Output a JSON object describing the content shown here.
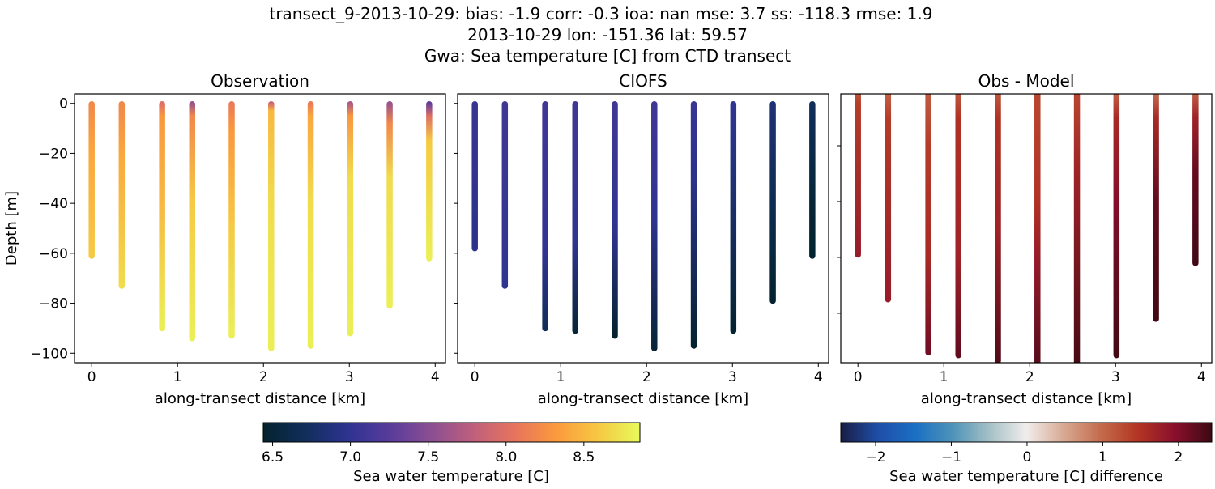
{
  "title_lines": [
    "transect_9-2013-10-29: bias: -1.9  corr: -0.3  ioa: nan  mse: 3.7  ss: -118.3  rmse: 1.9",
    "2013-10-29 lon: -151.36 lat: 59.57",
    "Gwa: Sea temperature [C] from CTD transect"
  ],
  "chart_data": [
    {
      "type": "scatter",
      "title": "Observation",
      "xlabel": "along-transect distance [km]",
      "ylabel": "Depth [m]",
      "xlim": [
        -0.2,
        4.12
      ],
      "ylim": [
        -103.8,
        3.8
      ],
      "xticks": [
        0,
        1,
        2,
        3,
        4
      ],
      "yticks": [
        0,
        -20,
        -40,
        -60,
        -80,
        -100
      ],
      "show_ytick_labels": true,
      "colormap": "thermal",
      "casts": [
        {
          "x": 0.0,
          "max_depth": 61,
          "profile": [
            [
              0,
              8.2
            ],
            [
              20,
              8.4
            ],
            [
              60,
              8.6
            ]
          ]
        },
        {
          "x": 0.35,
          "max_depth": 73,
          "profile": [
            [
              0,
              8.2
            ],
            [
              20,
              8.4
            ],
            [
              73,
              8.7
            ]
          ]
        },
        {
          "x": 0.82,
          "max_depth": 90,
          "profile": [
            [
              0,
              8.0
            ],
            [
              5,
              8.3
            ],
            [
              40,
              8.5
            ],
            [
              90,
              8.8
            ]
          ]
        },
        {
          "x": 1.17,
          "max_depth": 94,
          "profile": [
            [
              0,
              7.6
            ],
            [
              5,
              8.2
            ],
            [
              40,
              8.6
            ],
            [
              94,
              8.8
            ]
          ]
        },
        {
          "x": 1.63,
          "max_depth": 93,
          "profile": [
            [
              0,
              8.1
            ],
            [
              10,
              8.3
            ],
            [
              50,
              8.6
            ],
            [
              93,
              8.8
            ]
          ]
        },
        {
          "x": 2.09,
          "max_depth": 98,
          "profile": [
            [
              0,
              7.9
            ],
            [
              3,
              8.5
            ],
            [
              40,
              8.7
            ],
            [
              98,
              8.8
            ]
          ]
        },
        {
          "x": 2.55,
          "max_depth": 97,
          "profile": [
            [
              0,
              8.1
            ],
            [
              5,
              8.4
            ],
            [
              40,
              8.7
            ],
            [
              97,
              8.8
            ]
          ]
        },
        {
          "x": 3.01,
          "max_depth": 92,
          "profile": [
            [
              0,
              7.7
            ],
            [
              5,
              8.3
            ],
            [
              30,
              8.7
            ],
            [
              92,
              8.8
            ]
          ]
        },
        {
          "x": 3.47,
          "max_depth": 81,
          "profile": [
            [
              0,
              7.6
            ],
            [
              8,
              8.2
            ],
            [
              30,
              8.7
            ],
            [
              81,
              8.8
            ]
          ]
        },
        {
          "x": 3.93,
          "max_depth": 62,
          "profile": [
            [
              0,
              7.3
            ],
            [
              5,
              8.0
            ],
            [
              15,
              8.6
            ],
            [
              62,
              8.8
            ]
          ]
        }
      ]
    },
    {
      "type": "scatter",
      "title": "CIOFS",
      "xlabel": "along-transect distance [km]",
      "xlim": [
        -0.2,
        4.12
      ],
      "ylim": [
        -103.8,
        3.8
      ],
      "xticks": [
        0,
        1,
        2,
        3,
        4
      ],
      "yticks": [
        0,
        -20,
        -40,
        -60,
        -80,
        -100
      ],
      "show_ytick_labels": false,
      "colormap": "thermal",
      "casts": [
        {
          "x": 0.0,
          "max_depth": 58,
          "profile": [
            [
              0,
              7.05
            ],
            [
              58,
              6.95
            ]
          ]
        },
        {
          "x": 0.35,
          "max_depth": 73,
          "profile": [
            [
              0,
              7.1
            ],
            [
              73,
              7.0
            ]
          ]
        },
        {
          "x": 0.82,
          "max_depth": 90,
          "profile": [
            [
              0,
              7.1
            ],
            [
              60,
              7.0
            ],
            [
              90,
              6.7
            ]
          ]
        },
        {
          "x": 1.17,
          "max_depth": 91,
          "profile": [
            [
              0,
              7.1
            ],
            [
              55,
              7.0
            ],
            [
              91,
              6.5
            ]
          ]
        },
        {
          "x": 1.63,
          "max_depth": 93,
          "profile": [
            [
              0,
              7.1
            ],
            [
              50,
              7.0
            ],
            [
              93,
              6.45
            ]
          ]
        },
        {
          "x": 2.09,
          "max_depth": 98,
          "profile": [
            [
              0,
              7.1
            ],
            [
              45,
              7.0
            ],
            [
              98,
              6.5
            ]
          ]
        },
        {
          "x": 2.55,
          "max_depth": 97,
          "profile": [
            [
              0,
              7.05
            ],
            [
              30,
              6.95
            ],
            [
              97,
              6.45
            ]
          ]
        },
        {
          "x": 3.01,
          "max_depth": 91,
          "profile": [
            [
              0,
              7.0
            ],
            [
              30,
              6.85
            ],
            [
              91,
              6.45
            ]
          ]
        },
        {
          "x": 3.47,
          "max_depth": 79,
          "profile": [
            [
              0,
              6.85
            ],
            [
              40,
              6.65
            ],
            [
              79,
              6.45
            ]
          ]
        },
        {
          "x": 3.93,
          "max_depth": 61,
          "profile": [
            [
              0,
              6.7
            ],
            [
              40,
              6.5
            ],
            [
              61,
              6.45
            ]
          ]
        }
      ]
    },
    {
      "type": "scatter",
      "title": "Obs - Model",
      "xlabel": "along-transect distance [km]",
      "xlim": [
        -0.2,
        4.12
      ],
      "ylim": [
        -97.7,
        -1.45
      ],
      "xticks": [
        0,
        1,
        2,
        3,
        4
      ],
      "yticks": [
        -20,
        -40,
        -60,
        -80
      ],
      "show_ytick_labels": false,
      "colormap": "balance",
      "casts": [
        {
          "x": 0.0,
          "max_depth": 59,
          "profile": [
            [
              0,
              1.1
            ],
            [
              5,
              1.4
            ],
            [
              59,
              1.8
            ]
          ]
        },
        {
          "x": 0.35,
          "max_depth": 75,
          "profile": [
            [
              0,
              1.0
            ],
            [
              10,
              1.4
            ],
            [
              75,
              1.8
            ]
          ]
        },
        {
          "x": 0.82,
          "max_depth": 94,
          "profile": [
            [
              0,
              1.1
            ],
            [
              20,
              1.4
            ],
            [
              60,
              1.6
            ],
            [
              94,
              2.1
            ]
          ]
        },
        {
          "x": 1.17,
          "max_depth": 95,
          "profile": [
            [
              0,
              1.1
            ],
            [
              10,
              1.5
            ],
            [
              60,
              1.7
            ],
            [
              95,
              2.2
            ]
          ]
        },
        {
          "x": 1.63,
          "max_depth": 97,
          "profile": [
            [
              0,
              1.1
            ],
            [
              10,
              1.5
            ],
            [
              50,
              1.7
            ],
            [
              97,
              2.3
            ]
          ]
        },
        {
          "x": 2.09,
          "max_depth": 102,
          "profile": [
            [
              0,
              1.3
            ],
            [
              40,
              1.5
            ],
            [
              60,
              1.8
            ],
            [
              102,
              2.3
            ]
          ]
        },
        {
          "x": 2.55,
          "max_depth": 102,
          "profile": [
            [
              0,
              1.3
            ],
            [
              30,
              1.7
            ],
            [
              102,
              2.4
            ]
          ]
        },
        {
          "x": 3.01,
          "max_depth": 95,
          "profile": [
            [
              0,
              1.0
            ],
            [
              10,
              1.6
            ],
            [
              40,
              2.0
            ],
            [
              95,
              2.4
            ]
          ]
        },
        {
          "x": 3.47,
          "max_depth": 82,
          "profile": [
            [
              0,
              0.9
            ],
            [
              10,
              1.6
            ],
            [
              40,
              2.2
            ],
            [
              82,
              2.4
            ]
          ]
        },
        {
          "x": 3.93,
          "max_depth": 62,
          "profile": [
            [
              0,
              1.0
            ],
            [
              10,
              1.7
            ],
            [
              30,
              2.2
            ],
            [
              62,
              2.4
            ]
          ]
        }
      ]
    }
  ],
  "colorbars": [
    {
      "label": "Sea water temperature [C]",
      "colormap": "thermal",
      "range": [
        6.44,
        8.86
      ],
      "ticks": [
        "6.5",
        "7.0",
        "7.5",
        "8.0",
        "8.5"
      ]
    },
    {
      "label": "Sea water temperature [C] difference",
      "colormap": "balance",
      "range": [
        -2.46,
        2.44
      ],
      "ticks": [
        "−2",
        "−1",
        "0",
        "1",
        "2"
      ]
    }
  ],
  "colormaps": {
    "thermal": [
      "#04232e",
      "#102e5a",
      "#2d3390",
      "#573b9b",
      "#8a4e92",
      "#be5f7c",
      "#e6735e",
      "#fb9a3c",
      "#f6c843",
      "#e8fa5b"
    ],
    "balance": [
      "#181c43",
      "#1f4ea8",
      "#1a6fc4",
      "#4d92b8",
      "#a3c0c6",
      "#f1ecec",
      "#d8aa94",
      "#c46b4c",
      "#b33523",
      "#8a0f2c",
      "#3c0912"
    ]
  }
}
